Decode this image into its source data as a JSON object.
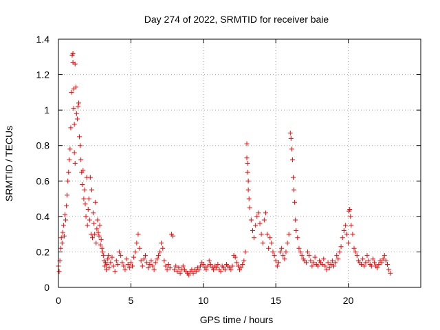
{
  "chart_data": {
    "type": "scatter",
    "title": "Day 274 of 2022, SRMTID for receiver baie",
    "xlabel": "GPS time / hours",
    "ylabel": "SRMTID / TECUs",
    "xlim": [
      0,
      25
    ],
    "ylim": [
      0,
      1.4
    ],
    "x_ticks": [
      0,
      5,
      10,
      15,
      20
    ],
    "x_tick_labels": [
      "0",
      "5",
      "10",
      "15",
      "20"
    ],
    "y_ticks": [
      0,
      0.2,
      0.4,
      0.6,
      0.8,
      1,
      1.2,
      1.4
    ],
    "y_tick_labels": [
      "0",
      "0.2",
      "0.4",
      "0.6",
      "0.8",
      "1",
      "1.2",
      "1.4"
    ],
    "grid": true,
    "marker": "+",
    "color": "#ff0000",
    "series": [
      {
        "name": "SRMTID",
        "x": [
          0.0,
          0.05,
          0.1,
          0.15,
          0.2,
          0.25,
          0.3,
          0.35,
          0.4,
          0.45,
          0.5,
          0.55,
          0.6,
          0.65,
          0.7,
          0.75,
          0.8,
          0.85,
          0.9,
          0.95,
          1.0,
          1.0,
          1.05,
          1.05,
          1.1,
          1.1,
          1.15,
          1.15,
          1.2,
          1.25,
          1.3,
          1.35,
          1.4,
          1.45,
          1.5,
          1.55,
          1.6,
          1.65,
          1.7,
          1.75,
          1.8,
          1.85,
          1.9,
          1.95,
          2.0,
          2.05,
          2.1,
          2.15,
          2.2,
          2.25,
          2.3,
          2.35,
          2.4,
          2.45,
          2.5,
          2.55,
          2.6,
          2.65,
          2.7,
          2.75,
          2.8,
          2.85,
          2.9,
          2.95,
          3.0,
          3.05,
          3.1,
          3.15,
          3.2,
          3.25,
          3.3,
          3.35,
          3.4,
          3.45,
          3.5,
          3.6,
          3.7,
          3.8,
          3.9,
          4.0,
          4.1,
          4.2,
          4.3,
          4.4,
          4.5,
          4.6,
          4.7,
          4.8,
          4.9,
          5.0,
          5.1,
          5.2,
          5.3,
          5.4,
          5.5,
          5.6,
          5.7,
          5.8,
          5.9,
          6.0,
          6.1,
          6.2,
          6.3,
          6.4,
          6.5,
          6.6,
          6.7,
          6.8,
          6.9,
          7.0,
          7.1,
          7.2,
          7.3,
          7.4,
          7.5,
          7.6,
          7.7,
          7.8,
          7.9,
          8.0,
          8.1,
          8.2,
          8.3,
          8.4,
          8.5,
          8.6,
          8.7,
          8.8,
          8.9,
          9.0,
          9.1,
          9.2,
          9.3,
          9.4,
          9.5,
          9.6,
          9.7,
          9.8,
          9.9,
          10.0,
          10.1,
          10.2,
          10.3,
          10.4,
          10.5,
          10.6,
          10.7,
          10.8,
          10.9,
          11.0,
          11.1,
          11.2,
          11.3,
          11.4,
          11.5,
          11.6,
          11.7,
          11.8,
          11.9,
          12.0,
          12.1,
          12.2,
          12.3,
          12.4,
          12.5,
          12.6,
          12.7,
          12.8,
          12.9,
          13.0,
          13.0,
          13.05,
          13.05,
          13.1,
          13.1,
          13.15,
          13.2,
          13.3,
          13.4,
          13.5,
          13.6,
          13.7,
          13.8,
          13.9,
          14.0,
          14.1,
          14.2,
          14.3,
          14.4,
          14.5,
          14.6,
          14.7,
          14.8,
          14.9,
          15.0,
          15.1,
          15.2,
          15.3,
          15.4,
          15.5,
          15.6,
          15.7,
          15.8,
          15.9,
          16.0,
          16.05,
          16.1,
          16.15,
          16.2,
          16.25,
          16.3,
          16.35,
          16.4,
          16.5,
          16.6,
          16.7,
          16.8,
          16.9,
          17.0,
          17.1,
          17.2,
          17.3,
          17.4,
          17.5,
          17.6,
          17.7,
          17.8,
          17.9,
          18.0,
          18.1,
          18.2,
          18.3,
          18.4,
          18.5,
          18.6,
          18.7,
          18.8,
          18.9,
          19.0,
          19.1,
          19.2,
          19.3,
          19.4,
          19.5,
          19.6,
          19.7,
          19.8,
          19.9,
          20.0,
          20.05,
          20.1,
          20.15,
          20.2,
          20.3,
          20.4,
          20.5,
          20.6,
          20.7,
          20.8,
          20.9,
          21.0,
          21.1,
          21.2,
          21.3,
          21.4,
          21.5,
          21.6,
          21.7,
          21.8,
          21.9,
          22.0,
          22.1,
          22.2,
          22.3,
          22.4,
          22.5,
          22.6,
          22.7,
          22.8,
          22.9
        ],
        "y": [
          0.12,
          0.09,
          0.15,
          0.22,
          0.28,
          0.25,
          0.31,
          0.35,
          0.29,
          0.41,
          0.38,
          0.46,
          0.52,
          0.6,
          0.65,
          0.72,
          0.78,
          0.9,
          1.1,
          1.31,
          1.32,
          1.27,
          1.12,
          1.01,
          0.92,
          0.76,
          0.7,
          1.26,
          1.13,
          0.98,
          0.95,
          1.02,
          1.04,
          0.85,
          0.8,
          0.72,
          0.65,
          0.58,
          0.66,
          0.5,
          0.55,
          0.47,
          0.4,
          0.62,
          0.35,
          0.44,
          0.5,
          0.38,
          0.62,
          0.3,
          0.55,
          0.28,
          0.42,
          0.36,
          0.3,
          0.48,
          0.25,
          0.33,
          0.38,
          0.31,
          0.29,
          0.35,
          0.24,
          0.27,
          0.22,
          0.2,
          0.18,
          0.15,
          0.12,
          0.14,
          0.1,
          0.13,
          0.16,
          0.18,
          0.11,
          0.14,
          0.17,
          0.12,
          0.09,
          0.15,
          0.13,
          0.2,
          0.18,
          0.14,
          0.12,
          0.1,
          0.16,
          0.13,
          0.11,
          0.14,
          0.12,
          0.17,
          0.2,
          0.25,
          0.3,
          0.22,
          0.15,
          0.12,
          0.16,
          0.18,
          0.14,
          0.11,
          0.13,
          0.15,
          0.12,
          0.1,
          0.14,
          0.16,
          0.18,
          0.2,
          0.25,
          0.22,
          0.15,
          0.12,
          0.1,
          0.13,
          0.11,
          0.3,
          0.29,
          0.1,
          0.12,
          0.09,
          0.11,
          0.08,
          0.1,
          0.12,
          0.1,
          0.09,
          0.08,
          0.07,
          0.09,
          0.1,
          0.08,
          0.1,
          0.09,
          0.11,
          0.1,
          0.12,
          0.14,
          0.13,
          0.11,
          0.1,
          0.12,
          0.15,
          0.13,
          0.11,
          0.1,
          0.12,
          0.11,
          0.13,
          0.1,
          0.09,
          0.12,
          0.11,
          0.1,
          0.13,
          0.12,
          0.11,
          0.1,
          0.12,
          0.18,
          0.17,
          0.14,
          0.12,
          0.1,
          0.11,
          0.13,
          0.15,
          0.2,
          0.81,
          0.73,
          0.7,
          0.65,
          0.6,
          0.55,
          0.5,
          0.45,
          0.38,
          0.32,
          0.28,
          0.35,
          0.4,
          0.42,
          0.36,
          0.3,
          0.25,
          0.38,
          0.42,
          0.3,
          0.22,
          0.28,
          0.25,
          0.2,
          0.18,
          0.15,
          0.12,
          0.14,
          0.2,
          0.22,
          0.18,
          0.16,
          0.2,
          0.25,
          0.3,
          0.87,
          0.84,
          0.78,
          0.72,
          0.62,
          0.55,
          0.48,
          0.38,
          0.32,
          0.28,
          0.22,
          0.2,
          0.18,
          0.16,
          0.15,
          0.14,
          0.2,
          0.18,
          0.15,
          0.12,
          0.14,
          0.17,
          0.13,
          0.12,
          0.15,
          0.14,
          0.13,
          0.16,
          0.12,
          0.1,
          0.14,
          0.11,
          0.13,
          0.15,
          0.12,
          0.14,
          0.18,
          0.16,
          0.2,
          0.23,
          0.28,
          0.32,
          0.35,
          0.3,
          0.25,
          0.43,
          0.44,
          0.4,
          0.35,
          0.3,
          0.22,
          0.2,
          0.18,
          0.15,
          0.14,
          0.13,
          0.16,
          0.12,
          0.14,
          0.18,
          0.15,
          0.13,
          0.12,
          0.16,
          0.14,
          0.12,
          0.11,
          0.13,
          0.15,
          0.14,
          0.16,
          0.18,
          0.15,
          0.13,
          0.1,
          0.08
        ]
      }
    ]
  }
}
